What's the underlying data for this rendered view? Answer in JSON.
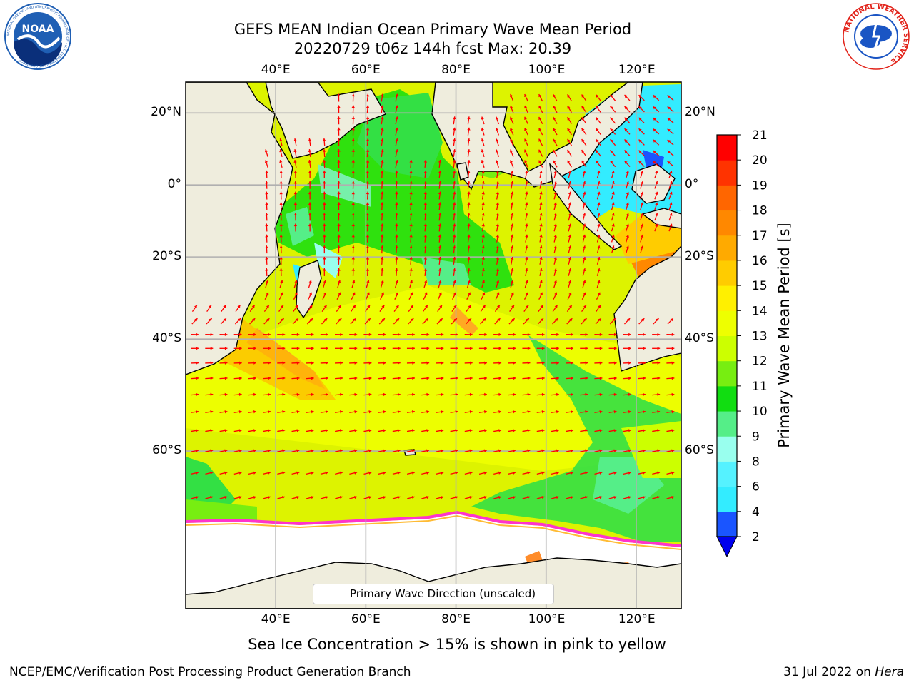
{
  "header": {
    "title_line1": "GEFS MEAN Indian Ocean Primary Wave Mean Period",
    "title_line2": "20220729 t06z 144h fcst   Max: 20.39"
  },
  "logos": {
    "left": {
      "name": "noaa-logo",
      "text": "NOAA",
      "ring_text": "NATIONAL OCEANIC AND ATMOSPHERIC ADMINISTRATION · U.S. DEPARTMENT OF COMMERCE",
      "colors": [
        "#1f5fb4",
        "#0a2f7a",
        "#ffffff"
      ]
    },
    "right": {
      "name": "nws-logo",
      "ring_text": "NATIONAL WEATHER SERVICE",
      "colors": [
        "#e2231a",
        "#1a55c4",
        "#ffffff"
      ]
    }
  },
  "map": {
    "extent": {
      "lon": [
        20,
        130
      ],
      "lat": [
        -76,
        28
      ]
    },
    "gridlines": true,
    "lon_ticks": [
      {
        "value": 40,
        "label": "40°E"
      },
      {
        "value": 60,
        "label": "60°E"
      },
      {
        "value": 80,
        "label": "80°E"
      },
      {
        "value": 100,
        "label": "100°E"
      },
      {
        "value": 120,
        "label": "120°E"
      }
    ],
    "lat_ticks": [
      {
        "value": 20,
        "label": "20°N"
      },
      {
        "value": 0,
        "label": "0°"
      },
      {
        "value": -20,
        "label": "20°S"
      },
      {
        "value": -40,
        "label": "40°S"
      },
      {
        "value": -60,
        "label": "60°S"
      }
    ],
    "land_color": "#efeddd",
    "arrow_color": "#ff0000",
    "ice_colors": [
      "#ff33cc",
      "#ff66cc",
      "#ffaa00",
      "#ffee00"
    ],
    "legend_label": "Primary Wave Direction (unscaled)"
  },
  "colorbar": {
    "label": "Primary Wave Mean Period [s]",
    "extend": "min",
    "extend_color": "#0000ee",
    "levels": [
      {
        "label": "2",
        "color": "#1a55ff"
      },
      {
        "label": "4",
        "color": "#00e5ff"
      },
      {
        "label": "6",
        "color": "#33ecff"
      },
      {
        "label": "8",
        "color": "#55f2ff"
      },
      {
        "label": "9",
        "color": "#99ffee"
      },
      {
        "label": "10",
        "color": "#55ee88"
      },
      {
        "label": "11",
        "color": "#11dd11"
      },
      {
        "label": "12",
        "color": "#77ee11"
      },
      {
        "label": "13",
        "color": "#ccff00"
      },
      {
        "label": "14",
        "color": "#eeff00"
      },
      {
        "label": "15",
        "color": "#fff000"
      },
      {
        "label": "16",
        "color": "#ffcc00"
      },
      {
        "label": "17",
        "color": "#ffaa00"
      },
      {
        "label": "18",
        "color": "#ff8800"
      },
      {
        "label": "19",
        "color": "#ff6600"
      },
      {
        "label": "20",
        "color": "#ff3300"
      },
      {
        "label": "21",
        "color": "#ff0000"
      }
    ]
  },
  "caption": "Sea Ice Concentration > 15% is shown in pink to yellow",
  "footer": {
    "left": "NCEP/EMC/Verification Post Processing Product Generation Branch",
    "right_date": "31 Jul 2022 on ",
    "right_machine": "Hera"
  }
}
